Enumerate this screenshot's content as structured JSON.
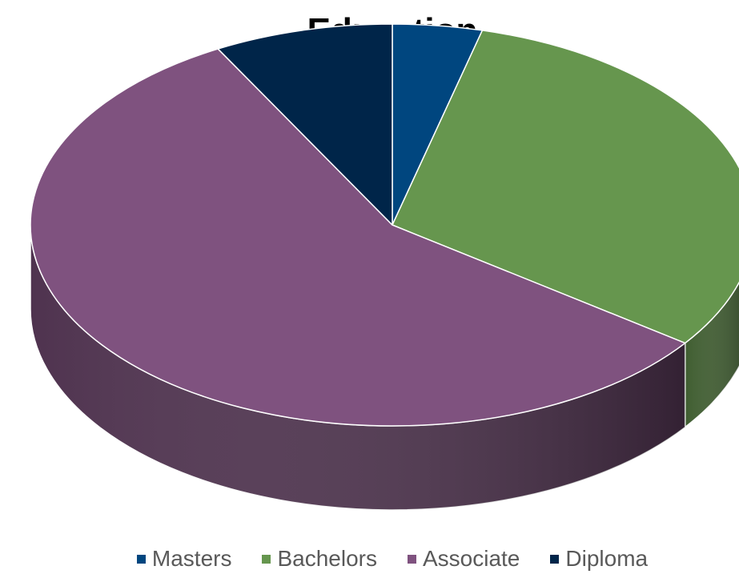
{
  "chart_data": {
    "type": "pie",
    "title": "Education",
    "categories": [
      "Masters",
      "Bachelors",
      "Associate",
      "Diploma"
    ],
    "values": [
      4,
      31,
      57,
      8
    ],
    "colors": [
      "#00467f",
      "#66964e",
      "#7f527f",
      "#002549"
    ],
    "legend_position": "bottom",
    "style": "3d"
  }
}
